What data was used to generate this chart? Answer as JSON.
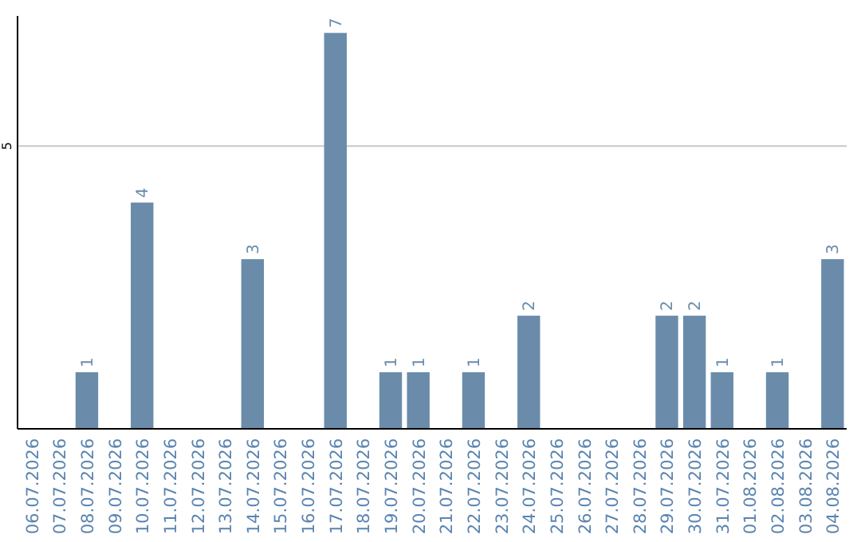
{
  "chart_data": {
    "type": "bar",
    "categories": [
      "06.07.2026",
      "07.07.2026",
      "08.07.2026",
      "09.07.2026",
      "10.07.2026",
      "11.07.2026",
      "12.07.2026",
      "13.07.2026",
      "14.07.2026",
      "15.07.2026",
      "16.07.2026",
      "17.07.2026",
      "18.07.2026",
      "19.07.2026",
      "20.07.2026",
      "21.07.2026",
      "22.07.2026",
      "23.07.2026",
      "24.07.2026",
      "25.07.2026",
      "26.07.2026",
      "27.07.2026",
      "28.07.2026",
      "29.07.2026",
      "30.07.2026",
      "31.07.2026",
      "01.08.2026",
      "02.08.2026",
      "03.08.2026",
      "04.08.2026"
    ],
    "values": [
      0,
      0,
      1,
      0,
      4,
      0,
      0,
      0,
      3,
      0,
      0,
      7,
      0,
      1,
      1,
      0,
      1,
      0,
      2,
      0,
      0,
      0,
      0,
      2,
      2,
      1,
      0,
      1,
      0,
      3
    ],
    "value_labels": [
      null,
      null,
      "1",
      null,
      "4",
      null,
      null,
      null,
      "3",
      null,
      null,
      "7",
      null,
      "1",
      "1",
      null,
      "1",
      null,
      "2",
      null,
      null,
      null,
      null,
      "2",
      "2",
      "1",
      null,
      "1",
      null,
      "3"
    ],
    "color": "#6a8caa",
    "ylim": [
      0,
      7.3
    ],
    "yticks": [
      5
    ],
    "grid": "y"
  }
}
